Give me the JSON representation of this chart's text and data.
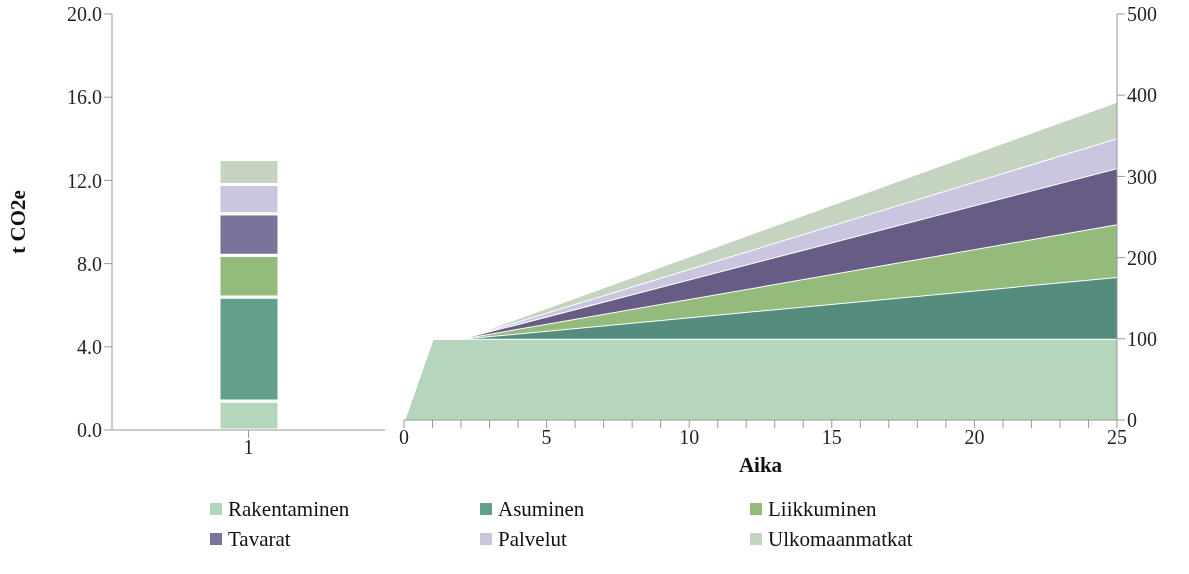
{
  "chart_data": [
    {
      "type": "bar",
      "stacked": true,
      "categories": [
        "1"
      ],
      "ylabel": "t CO2e",
      "ylim": [
        0,
        20
      ],
      "yticks": [
        {
          "value": 0,
          "label": "0.0"
        },
        {
          "value": 4,
          "label": "4.0"
        },
        {
          "value": 8,
          "label": "8.0"
        },
        {
          "value": 12,
          "label": "12.0"
        },
        {
          "value": 16,
          "label": "16.0"
        },
        {
          "value": 20,
          "label": "20.0"
        }
      ],
      "legend": "bottom",
      "series": [
        {
          "name": "Rakentaminen",
          "color": "#b5d5bd",
          "values": [
            1.4
          ]
        },
        {
          "name": "Asuminen",
          "color": "#62a08c",
          "values": [
            5.0
          ]
        },
        {
          "name": "Liikkuminen",
          "color": "#94ba7c",
          "values": [
            2.0
          ]
        },
        {
          "name": "Tavarat",
          "color": "#7b7399",
          "values": [
            2.0
          ]
        },
        {
          "name": "Palvelut",
          "color": "#cbc6e0",
          "values": [
            1.4
          ]
        },
        {
          "name": "Ulkomaanmatkat",
          "color": "#c5d4c0",
          "values": [
            1.2
          ]
        }
      ]
    },
    {
      "type": "area",
      "stacked": true,
      "xlabel": "Aika",
      "x": [
        0,
        1,
        2,
        25
      ],
      "xlim": [
        0,
        25
      ],
      "xticks": [
        0,
        {
          "value": 1,
          "label": null
        },
        {
          "value": 2,
          "label": null
        },
        {
          "value": 3,
          "label": null
        },
        {
          "value": 4,
          "label": null
        },
        5,
        {
          "value": 6,
          "label": null
        },
        {
          "value": 7,
          "label": null
        },
        {
          "value": 8,
          "label": null
        },
        {
          "value": 9,
          "label": null
        },
        10,
        {
          "value": 11,
          "label": null
        },
        {
          "value": 12,
          "label": null
        },
        {
          "value": 13,
          "label": null
        },
        {
          "value": 14,
          "label": null
        },
        15,
        {
          "value": 16,
          "label": null
        },
        {
          "value": 17,
          "label": null
        },
        {
          "value": 18,
          "label": null
        },
        {
          "value": 19,
          "label": null
        },
        20,
        {
          "value": 21,
          "label": null
        },
        {
          "value": 22,
          "label": null
        },
        {
          "value": 23,
          "label": null
        },
        {
          "value": 24,
          "label": null
        },
        25
      ],
      "y2lim": [
        0,
        500
      ],
      "y2ticks": [
        0,
        100,
        200,
        300,
        400,
        500
      ],
      "series": [
        {
          "color": "#b5d5bd",
          "axis": "y2",
          "values": [
            0,
            100,
            100,
            100
          ]
        },
        {
          "color": "#548d7e",
          "axis": "y2",
          "values": [
            0,
            0,
            0,
            76
          ]
        },
        {
          "color": "#94ba7c",
          "axis": "y2",
          "values": [
            0,
            0,
            0,
            65
          ]
        },
        {
          "color": "#675c85",
          "axis": "y2",
          "values": [
            0,
            0,
            0,
            69
          ]
        },
        {
          "color": "#cbc6e0",
          "axis": "y2",
          "values": [
            0,
            0,
            0,
            37
          ]
        },
        {
          "color": "#c5d4c0",
          "axis": "y2",
          "values": [
            0,
            0,
            0,
            45
          ]
        }
      ]
    }
  ]
}
